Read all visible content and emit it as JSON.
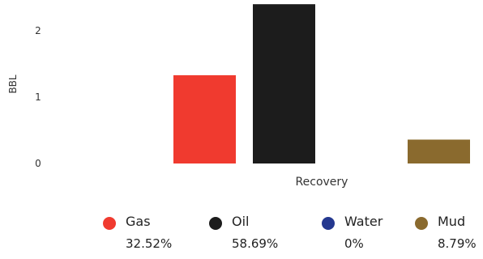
{
  "chart_data": {
    "type": "bar",
    "ylabel": "BBL",
    "xlabel": "Recovery",
    "ylim": [
      0,
      2.4
    ],
    "y_ticks": [
      "0",
      "1",
      "2"
    ],
    "y_tick_values": [
      0,
      1,
      2
    ],
    "grid": false,
    "legend_position": "bottom",
    "series": [
      {
        "name": "Gas",
        "value": 1.33,
        "color": "#f03a2f",
        "percent": "32.52%"
      },
      {
        "name": "Oil",
        "value": 2.4,
        "color": "#1c1c1c",
        "percent": "58.69%"
      },
      {
        "name": "Water",
        "value": 0,
        "color": "#24388f",
        "percent": "0%"
      },
      {
        "name": "Mud",
        "value": 0.36,
        "color": "#8a6a2e",
        "percent": "8.79%"
      }
    ]
  }
}
